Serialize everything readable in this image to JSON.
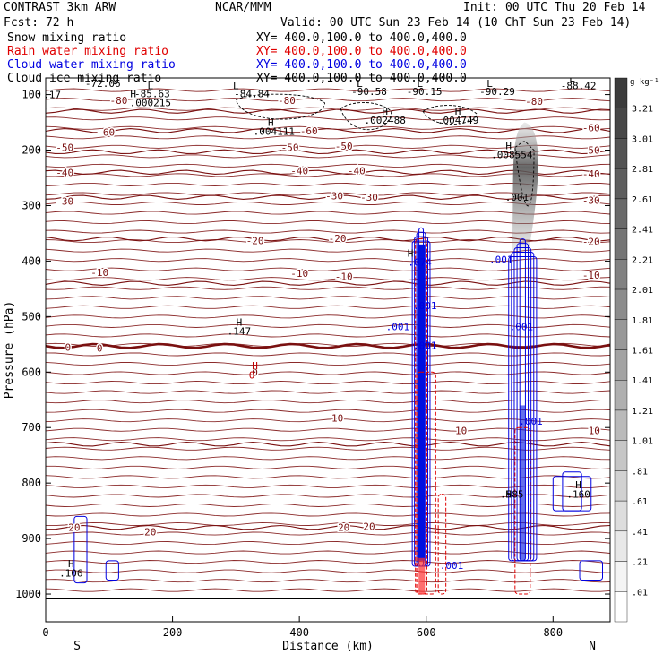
{
  "header": {
    "model": "CONTRAST  3km ARW",
    "org": "NCAR/MMM",
    "init": "Init: 00 UTC Thu 20 Feb 14",
    "fcst": "Fcst:    72 h",
    "valid": "Valid: 00 UTC Sun 23 Feb 14 (10 ChT Sun 23 Feb 14)"
  },
  "fields": [
    {
      "name": "Snow mixing ratio",
      "xy": "XY= 400.0,100.0 to 400.0,400.0",
      "color": "#000000"
    },
    {
      "name": "Rain water mixing ratio",
      "xy": "XY= 400.0,100.0 to 400.0,400.0",
      "color": "#e00000"
    },
    {
      "name": "Cloud water mixing ratio",
      "xy": "XY= 400.0,100.0 to 400.0,400.0",
      "color": "#0000e0"
    },
    {
      "name": "Cloud ice mixing ratio",
      "xy": "XY= 400.0,100.0 to 400.0,400.0",
      "color": "#000000"
    }
  ],
  "chart_data": {
    "type": "cross-section",
    "xlabel": "Distance (km)",
    "ylabel": "Pressure (hPa)",
    "xlim": [
      0,
      890
    ],
    "ylim": [
      1050,
      70
    ],
    "xticks": [
      0,
      200,
      400,
      600,
      800
    ],
    "yticks": [
      100,
      200,
      300,
      400,
      500,
      600,
      700,
      800,
      900,
      1000
    ],
    "x_end_labels": [
      "S",
      "N"
    ],
    "temperature_contours": [
      {
        "level": -80,
        "p": 130
      },
      {
        "level": -60,
        "p": 165
      },
      {
        "level": -50,
        "p": 203
      },
      {
        "level": -40,
        "p": 240
      },
      {
        "level": -30,
        "p": 285
      },
      {
        "level": -20,
        "p": 360
      },
      {
        "level": -10,
        "p": 440
      },
      {
        "level": 0,
        "p": 553
      },
      {
        "level": 10,
        "p": 730
      },
      {
        "level": 20,
        "p": 880
      }
    ],
    "contour_labels": [
      {
        "text": "-80",
        "x": 115,
        "p": 110
      },
      {
        "text": "-80",
        "x": 380,
        "p": 110
      },
      {
        "text": "-80",
        "x": 770,
        "p": 112
      },
      {
        "text": "-60",
        "x": 95,
        "p": 168
      },
      {
        "text": "-60",
        "x": 415,
        "p": 165
      },
      {
        "text": "-60",
        "x": 860,
        "p": 160
      },
      {
        "text": "-50",
        "x": 30,
        "p": 195
      },
      {
        "text": "-50",
        "x": 385,
        "p": 195
      },
      {
        "text": "-50",
        "x": 470,
        "p": 193
      },
      {
        "text": "-50",
        "x": 860,
        "p": 200
      },
      {
        "text": "-40",
        "x": 30,
        "p": 240
      },
      {
        "text": "-40",
        "x": 400,
        "p": 237
      },
      {
        "text": "-40",
        "x": 490,
        "p": 237
      },
      {
        "text": "-40",
        "x": 860,
        "p": 243
      },
      {
        "text": "-30",
        "x": 30,
        "p": 292
      },
      {
        "text": "-30",
        "x": 455,
        "p": 282
      },
      {
        "text": "-30",
        "x": 510,
        "p": 285
      },
      {
        "text": "-30",
        "x": 860,
        "p": 290
      },
      {
        "text": "-20",
        "x": 330,
        "p": 363
      },
      {
        "text": "-20",
        "x": 460,
        "p": 359
      },
      {
        "text": "-20",
        "x": 860,
        "p": 365
      },
      {
        "text": "-10",
        "x": 85,
        "p": 420
      },
      {
        "text": "-10",
        "x": 400,
        "p": 422
      },
      {
        "text": "-10",
        "x": 470,
        "p": 428
      },
      {
        "text": "-10",
        "x": 860,
        "p": 425
      },
      {
        "text": "0",
        "x": 35,
        "p": 555
      },
      {
        "text": "0",
        "x": 85,
        "p": 557
      },
      {
        "text": "0",
        "x": 330,
        "p": 600
      },
      {
        "text": "10",
        "x": 460,
        "p": 683
      },
      {
        "text": "10",
        "x": 655,
        "p": 705
      },
      {
        "text": "10",
        "x": 865,
        "p": 705
      },
      {
        "text": "20",
        "x": 45,
        "p": 880
      },
      {
        "text": "20",
        "x": 165,
        "p": 888
      },
      {
        "text": "20",
        "x": 470,
        "p": 880
      },
      {
        "text": "20",
        "x": 510,
        "p": 878
      }
    ],
    "extrema_labels": [
      {
        "text": "-72.06",
        "x": 90,
        "p": 80
      },
      {
        "text": ".17",
        "x": 10,
        "p": 100
      },
      {
        "text": "H",
        "x": 138,
        "p": 98
      },
      {
        "text": "-85.63",
        "x": 168,
        "p": 98
      },
      {
        "text": ".000215",
        "x": 165,
        "p": 114
      },
      {
        "text": "L",
        "x": 165,
        "p": 84
      },
      {
        "text": "L",
        "x": 300,
        "p": 84
      },
      {
        "text": "-84.84",
        "x": 325,
        "p": 98
      },
      {
        "text": "L",
        "x": 495,
        "p": 80
      },
      {
        "text": "-90.58",
        "x": 510,
        "p": 94
      },
      {
        "text": "L",
        "x": 590,
        "p": 80
      },
      {
        "text": "-90.15",
        "x": 597,
        "p": 94
      },
      {
        "text": "L",
        "x": 700,
        "p": 80
      },
      {
        "text": "-90.29",
        "x": 712,
        "p": 94
      },
      {
        "text": "L",
        "x": 830,
        "p": 70
      },
      {
        "text": "-88.42",
        "x": 840,
        "p": 84
      },
      {
        "text": "H",
        "x": 355,
        "p": 150
      },
      {
        "text": ".004111",
        "x": 360,
        "p": 166
      },
      {
        "text": "H",
        "x": 535,
        "p": 130
      },
      {
        "text": ".002488",
        "x": 535,
        "p": 146
      },
      {
        "text": "H",
        "x": 650,
        "p": 130
      },
      {
        "text": ".004749",
        "x": 650,
        "p": 146
      },
      {
        "text": "H",
        "x": 730,
        "p": 192
      },
      {
        "text": ".008554",
        "x": 735,
        "p": 208
      },
      {
        "text": ".001",
        "x": 743,
        "p": 285
      },
      {
        "text": "H",
        "x": 575,
        "p": 386
      },
      {
        "text": ".074",
        "x": 590,
        "p": 402
      },
      {
        "text": ".001",
        "x": 718,
        "p": 397
      },
      {
        "text": "H",
        "x": 305,
        "p": 510
      },
      {
        "text": ".147",
        "x": 305,
        "p": 526
      },
      {
        "text": ".001",
        "x": 555,
        "p": 518
      },
      {
        "text": ".001",
        "x": 598,
        "p": 480
      },
      {
        "text": ".001",
        "x": 750,
        "p": 518
      },
      {
        "text": ".001",
        "x": 598,
        "p": 552
      },
      {
        "text": "H",
        "x": 330,
        "p": 588
      },
      {
        "text": "0",
        "x": 325,
        "p": 605
      },
      {
        "text": ".001",
        "x": 765,
        "p": 688
      },
      {
        "text": ".001",
        "x": 640,
        "p": 948
      },
      {
        "text": "H",
        "x": 840,
        "p": 803
      },
      {
        "text": ".160",
        "x": 840,
        "p": 820
      },
      {
        "text": "H",
        "x": 730,
        "p": 820
      },
      {
        "text": ".585",
        "x": 735,
        "p": 820
      },
      {
        "text": "H",
        "x": 40,
        "p": 945
      },
      {
        "text": ".106",
        "x": 40,
        "p": 962
      }
    ],
    "colorbar": {
      "unit": "g kg⁻¹",
      "labels": [
        "3.21",
        "3.01",
        "2.81",
        "2.61",
        "2.41",
        "2.21",
        "2.01",
        "1.81",
        "1.61",
        "1.41",
        "1.21",
        "1.01",
        ".81",
        ".61",
        ".41",
        ".21",
        ".01"
      ]
    }
  }
}
